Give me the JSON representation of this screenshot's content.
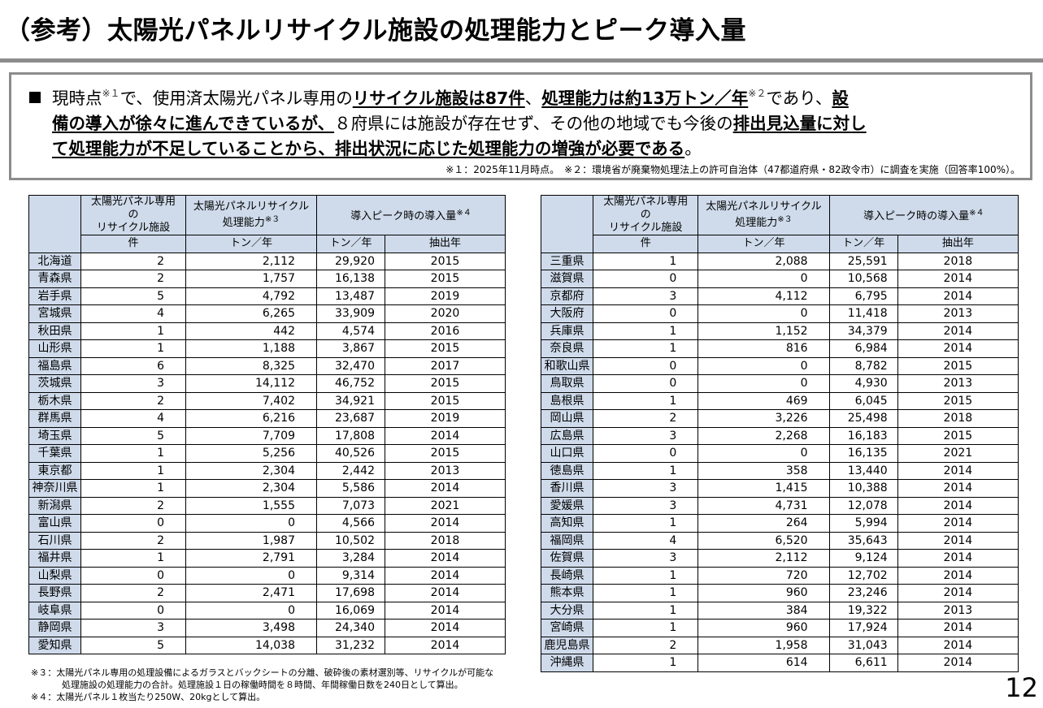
{
  "title": "（参考）太陽光パネルリサイクル施設の処理能力とピーク導入量",
  "summary": {
    "lines": [
      [
        {
          "t": "現時点",
          "b": false,
          "u": false
        },
        {
          "t": "※１",
          "sup": true
        },
        {
          "t": "で、使用済太陽光パネル専用の",
          "b": false,
          "u": false
        },
        {
          "t": "リサイクル施設は87件",
          "b": true,
          "u": true
        },
        {
          "t": "、",
          "b": false,
          "u": false
        },
        {
          "t": "処理能力は約13万トン／年",
          "b": true,
          "u": true
        },
        {
          "t": "※２",
          "sup": true
        },
        {
          "t": "であり、",
          "b": false,
          "u": false
        },
        {
          "t": "設",
          "b": true,
          "u": true
        }
      ],
      [
        {
          "t": "備の導入が徐々に進んできているが、",
          "b": true,
          "u": true
        },
        {
          "t": "８府県には施設が存在せず、その他の地域でも今後の",
          "b": false,
          "u": false
        },
        {
          "t": "排出見込量に対し",
          "b": true,
          "u": true
        }
      ],
      [
        {
          "t": "て処理能力が不足していることから、排出状況に応じた処理能力の増強が必要である",
          "b": true,
          "u": true
        },
        {
          "t": "。",
          "b": false,
          "u": false
        }
      ]
    ],
    "note": "※１：2025年11月時点。　※２：環境省が廃棄物処理法上の許可自治体（47都道府県・82政令市）に調査を実施（回答率100%）。"
  },
  "table_headers": {
    "facilities": "太陽光パネル専用の\nリサイクル施設",
    "capacity": "太陽光パネルリサイクル\n処理能力",
    "capacity_note": "※３",
    "peak": "導入ピーク時の導入量",
    "peak_note": "※４",
    "unit_count": "件",
    "unit_capacity": "トン／年",
    "unit_peak": "トン／年",
    "unit_year": "抽出年"
  },
  "tables": {
    "left": [
      [
        "北海道",
        "2",
        "2,112",
        "29,920",
        "2015"
      ],
      [
        "青森県",
        "2",
        "1,757",
        "16,138",
        "2015"
      ],
      [
        "岩手県",
        "5",
        "4,792",
        "13,487",
        "2019"
      ],
      [
        "宮城県",
        "4",
        "6,265",
        "33,909",
        "2020"
      ],
      [
        "秋田県",
        "1",
        "442",
        "4,574",
        "2016"
      ],
      [
        "山形県",
        "1",
        "1,188",
        "3,867",
        "2015"
      ],
      [
        "福島県",
        "6",
        "8,325",
        "32,470",
        "2017"
      ],
      [
        "茨城県",
        "3",
        "14,112",
        "46,752",
        "2015"
      ],
      [
        "栃木県",
        "2",
        "7,402",
        "34,921",
        "2015"
      ],
      [
        "群馬県",
        "4",
        "6,216",
        "23,687",
        "2019"
      ],
      [
        "埼玉県",
        "5",
        "7,709",
        "17,808",
        "2014"
      ],
      [
        "千葉県",
        "1",
        "5,256",
        "40,526",
        "2015"
      ],
      [
        "東京都",
        "1",
        "2,304",
        "2,442",
        "2013"
      ],
      [
        "神奈川県",
        "1",
        "2,304",
        "5,586",
        "2014"
      ],
      [
        "新潟県",
        "2",
        "1,555",
        "7,073",
        "2021"
      ],
      [
        "富山県",
        "0",
        "0",
        "4,566",
        "2014"
      ],
      [
        "石川県",
        "2",
        "1,987",
        "10,502",
        "2018"
      ],
      [
        "福井県",
        "1",
        "2,791",
        "3,284",
        "2014"
      ],
      [
        "山梨県",
        "0",
        "0",
        "9,314",
        "2014"
      ],
      [
        "長野県",
        "2",
        "2,471",
        "17,698",
        "2014"
      ],
      [
        "岐阜県",
        "0",
        "0",
        "16,069",
        "2014"
      ],
      [
        "静岡県",
        "3",
        "3,498",
        "24,340",
        "2014"
      ],
      [
        "愛知県",
        "5",
        "14,038",
        "31,232",
        "2014"
      ]
    ],
    "right": [
      [
        "三重県",
        "1",
        "2,088",
        "25,591",
        "2018"
      ],
      [
        "滋賀県",
        "0",
        "0",
        "10,568",
        "2014"
      ],
      [
        "京都府",
        "3",
        "4,112",
        "6,795",
        "2014"
      ],
      [
        "大阪府",
        "0",
        "0",
        "11,418",
        "2013"
      ],
      [
        "兵庫県",
        "1",
        "1,152",
        "34,379",
        "2014"
      ],
      [
        "奈良県",
        "1",
        "816",
        "6,984",
        "2014"
      ],
      [
        "和歌山県",
        "0",
        "0",
        "8,782",
        "2015"
      ],
      [
        "鳥取県",
        "0",
        "0",
        "4,930",
        "2013"
      ],
      [
        "島根県",
        "1",
        "469",
        "6,045",
        "2015"
      ],
      [
        "岡山県",
        "2",
        "3,226",
        "25,498",
        "2018"
      ],
      [
        "広島県",
        "3",
        "2,268",
        "16,183",
        "2015"
      ],
      [
        "山口県",
        "0",
        "0",
        "16,135",
        "2021"
      ],
      [
        "徳島県",
        "1",
        "358",
        "13,440",
        "2014"
      ],
      [
        "香川県",
        "3",
        "1,415",
        "10,388",
        "2014"
      ],
      [
        "愛媛県",
        "3",
        "4,731",
        "12,078",
        "2014"
      ],
      [
        "高知県",
        "1",
        "264",
        "5,994",
        "2014"
      ],
      [
        "福岡県",
        "4",
        "6,520",
        "35,643",
        "2014"
      ],
      [
        "佐賀県",
        "3",
        "2,112",
        "9,124",
        "2014"
      ],
      [
        "長崎県",
        "1",
        "720",
        "12,702",
        "2014"
      ],
      [
        "熊本県",
        "1",
        "960",
        "23,246",
        "2014"
      ],
      [
        "大分県",
        "1",
        "384",
        "19,322",
        "2013"
      ],
      [
        "宮崎県",
        "1",
        "960",
        "17,924",
        "2014"
      ],
      [
        "鹿児島県",
        "2",
        "1,958",
        "31,043",
        "2014"
      ],
      [
        "沖縄県",
        "1",
        "614",
        "6,611",
        "2014"
      ]
    ]
  },
  "footnotes": {
    "note3_line1": "※３：太陽光パネル専用の処理設備によるガラスとバックシートの分離、破砕後の素材選別等、リサイクルが可能な",
    "note3_line2": "処理施設の処理能力の合計。処理施設１日の稼働時間を８時間、年間稼働日数を240日として算出。",
    "note4": "※４：太陽光パネル１枚当たり250W、20kgとして算出。"
  },
  "page_number": "12",
  "colors": {
    "header_bg": "#cfdbeb",
    "rule": "#8c8c8c"
  }
}
